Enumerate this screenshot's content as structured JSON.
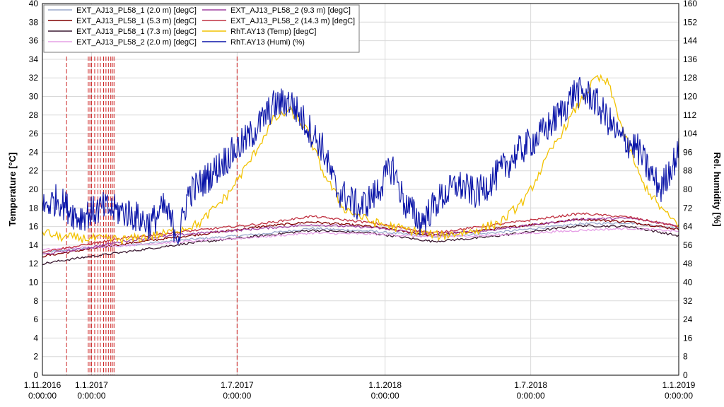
{
  "chart_data": {
    "type": "line",
    "ylabel_left": "Temperature [°C]",
    "ylabel_right": "Rel. humidity [%]",
    "y_left": {
      "min": 0,
      "max": 40,
      "step": 2
    },
    "y_right": {
      "min": 0,
      "max": 160,
      "step": 8
    },
    "x_range": [
      "2016-11-01",
      "2019-01-01"
    ],
    "x_ticks": [
      {
        "date": "2016-11-01",
        "line1": "1.11.2016",
        "line2": "0:00:00"
      },
      {
        "date": "2017-01-01",
        "line1": "1.1.2017",
        "line2": "0:00:00"
      },
      {
        "date": "2017-07-01",
        "line1": "1.7.2017",
        "line2": "0:00:00"
      },
      {
        "date": "2018-01-01",
        "line1": "1.1.2018",
        "line2": "0:00:00"
      },
      {
        "date": "2018-07-01",
        "line1": "1.7.2018",
        "line2": "0:00:00"
      },
      {
        "date": "2019-01-01",
        "line1": "1.1.2019",
        "line2": "0:00:00"
      }
    ],
    "grid": true,
    "legend_position": "top-left",
    "event_markers": [
      "2016-12-01",
      "2016-12-28",
      "2016-12-30",
      "2017-01-01",
      "2017-01-05",
      "2017-01-09",
      "2017-01-12",
      "2017-01-16",
      "2017-01-19",
      "2017-01-22",
      "2017-01-25",
      "2017-01-27",
      "2017-01-29",
      "2017-07-01"
    ],
    "marker_color": "#cc2222",
    "series": [
      {
        "name": "EXT_AJ13_PL58_1 (2.0 m) [degC]",
        "color": "#9aa8cc",
        "axis": "left",
        "points": [
          [
            "2016-11-01",
            13.2
          ],
          [
            "2016-12-15",
            13.6
          ],
          [
            "2017-02-15",
            14.0
          ],
          [
            "2017-05-01",
            14.6
          ],
          [
            "2017-08-01",
            15.2
          ],
          [
            "2017-10-01",
            15.8
          ],
          [
            "2017-12-15",
            15.5
          ],
          [
            "2018-03-01",
            14.9
          ],
          [
            "2018-05-01",
            15.2
          ],
          [
            "2018-09-01",
            16.3
          ],
          [
            "2018-11-01",
            16.4
          ],
          [
            "2019-01-01",
            15.8
          ]
        ]
      },
      {
        "name": "EXT_AJ13_PL58_1 (5.3 m) [degC]",
        "color": "#800000",
        "axis": "left",
        "points": [
          [
            "2016-11-01",
            12.8
          ],
          [
            "2016-12-15",
            13.4
          ],
          [
            "2017-02-15",
            14.2
          ],
          [
            "2017-05-01",
            15.0
          ],
          [
            "2017-08-01",
            16.0
          ],
          [
            "2017-10-01",
            16.5
          ],
          [
            "2017-12-15",
            16.0
          ],
          [
            "2018-03-01",
            15.0
          ],
          [
            "2018-05-01",
            15.6
          ],
          [
            "2018-09-01",
            16.8
          ],
          [
            "2018-11-01",
            16.5
          ],
          [
            "2019-01-01",
            15.7
          ]
        ]
      },
      {
        "name": "EXT_AJ13_PL58_1 (7.3 m) [degC]",
        "color": "#3a1830",
        "axis": "left",
        "points": [
          [
            "2016-11-01",
            12.0
          ],
          [
            "2016-12-15",
            12.6
          ],
          [
            "2017-02-15",
            13.3
          ],
          [
            "2017-05-01",
            14.2
          ],
          [
            "2017-08-01",
            15.0
          ],
          [
            "2017-10-01",
            15.6
          ],
          [
            "2017-12-15",
            15.3
          ],
          [
            "2018-03-01",
            14.4
          ],
          [
            "2018-05-01",
            14.8
          ],
          [
            "2018-09-01",
            16.1
          ],
          [
            "2018-11-01",
            16.0
          ],
          [
            "2019-01-01",
            15.0
          ]
        ]
      },
      {
        "name": "EXT_AJ13_PL58_2 (2.0 m) [degC]",
        "color": "#e6a0e6",
        "axis": "left",
        "points": [
          [
            "2016-11-01",
            13.5
          ],
          [
            "2016-12-15",
            13.7
          ],
          [
            "2017-02-15",
            14.0
          ],
          [
            "2017-05-01",
            14.4
          ],
          [
            "2017-08-01",
            14.9
          ],
          [
            "2017-10-01",
            15.3
          ],
          [
            "2017-12-15",
            15.2
          ],
          [
            "2018-03-01",
            14.9
          ],
          [
            "2018-05-01",
            15.0
          ],
          [
            "2018-09-01",
            15.6
          ],
          [
            "2018-11-01",
            15.8
          ],
          [
            "2019-01-01",
            15.5
          ]
        ]
      },
      {
        "name": "EXT_AJ13_PL58_2 (9.3 m) [degC]",
        "color": "#a040a0",
        "axis": "left",
        "points": [
          [
            "2016-11-01",
            13.0
          ],
          [
            "2016-12-15",
            13.5
          ],
          [
            "2017-02-15",
            14.5
          ],
          [
            "2017-05-01",
            15.2
          ],
          [
            "2017-08-01",
            15.8
          ],
          [
            "2017-10-01",
            16.2
          ],
          [
            "2017-12-15",
            15.9
          ],
          [
            "2018-03-01",
            15.2
          ],
          [
            "2018-05-01",
            15.5
          ],
          [
            "2018-09-01",
            16.8
          ],
          [
            "2018-11-01",
            16.9
          ],
          [
            "2019-01-01",
            16.1
          ]
        ]
      },
      {
        "name": "EXT_AJ13_PL58_2 (14.3 m) [degC]",
        "color": "#c03040",
        "axis": "left",
        "points": [
          [
            "2016-11-01",
            13.3
          ],
          [
            "2016-12-15",
            13.9
          ],
          [
            "2017-02-15",
            14.8
          ],
          [
            "2017-05-01",
            15.5
          ],
          [
            "2017-08-01",
            16.3
          ],
          [
            "2017-10-01",
            17.1
          ],
          [
            "2017-12-15",
            16.4
          ],
          [
            "2018-03-01",
            15.3
          ],
          [
            "2018-05-01",
            16.0
          ],
          [
            "2018-09-01",
            17.4
          ],
          [
            "2018-11-01",
            17.0
          ],
          [
            "2019-01-01",
            16.0
          ]
        ]
      },
      {
        "name": "RhT.AY13 (Temp) [degC]",
        "color": "#f2c200",
        "axis": "left",
        "points": [
          [
            "2016-11-01",
            15.5
          ],
          [
            "2016-11-20",
            14.9
          ],
          [
            "2017-01-01",
            14.7
          ],
          [
            "2017-02-15",
            14.6
          ],
          [
            "2017-04-01",
            15.2
          ],
          [
            "2017-05-15",
            16.3
          ],
          [
            "2017-06-20",
            19.5
          ],
          [
            "2017-07-20",
            23.5
          ],
          [
            "2017-08-15",
            27.5
          ],
          [
            "2017-09-05",
            28.5
          ],
          [
            "2017-09-25",
            26.5
          ],
          [
            "2017-10-15",
            22.0
          ],
          [
            "2017-11-10",
            18.0
          ],
          [
            "2017-12-15",
            16.5
          ],
          [
            "2018-01-20",
            15.8
          ],
          [
            "2018-03-10",
            15.0
          ],
          [
            "2018-04-20",
            15.5
          ],
          [
            "2018-05-25",
            16.5
          ],
          [
            "2018-06-25",
            19.0
          ],
          [
            "2018-07-25",
            24.0
          ],
          [
            "2018-08-25",
            28.5
          ],
          [
            "2018-09-20",
            32.0
          ],
          [
            "2018-10-05",
            31.5
          ],
          [
            "2018-10-25",
            26.0
          ],
          [
            "2018-11-15",
            21.0
          ],
          [
            "2018-12-05",
            18.5
          ],
          [
            "2018-12-20",
            17.0
          ],
          [
            "2019-01-01",
            16.3
          ]
        ]
      },
      {
        "name": "RhT.AY13 (Humi) (%)",
        "color": "#0a14a8",
        "axis": "right",
        "points": [
          [
            "2016-11-01",
            72
          ],
          [
            "2016-11-20",
            76
          ],
          [
            "2016-12-15",
            68
          ],
          [
            "2017-01-15",
            72
          ],
          [
            "2017-02-15",
            70
          ],
          [
            "2017-03-15",
            65
          ],
          [
            "2017-04-01",
            72
          ],
          [
            "2017-04-20",
            60
          ],
          [
            "2017-05-01",
            78
          ],
          [
            "2017-05-25",
            85
          ],
          [
            "2017-06-20",
            94
          ],
          [
            "2017-07-20",
            104
          ],
          [
            "2017-08-15",
            116
          ],
          [
            "2017-09-05",
            118
          ],
          [
            "2017-09-25",
            108
          ],
          [
            "2017-10-15",
            98
          ],
          [
            "2017-11-01",
            80
          ],
          [
            "2017-12-01",
            72
          ],
          [
            "2017-12-20",
            78
          ],
          [
            "2018-01-10",
            90
          ],
          [
            "2018-01-25",
            74
          ],
          [
            "2018-02-15",
            66
          ],
          [
            "2018-03-10",
            76
          ],
          [
            "2018-04-01",
            82
          ],
          [
            "2018-04-25",
            78
          ],
          [
            "2018-05-20",
            86
          ],
          [
            "2018-06-15",
            96
          ],
          [
            "2018-07-15",
            104
          ],
          [
            "2018-08-10",
            114
          ],
          [
            "2018-08-25",
            122
          ],
          [
            "2018-09-15",
            120
          ],
          [
            "2018-10-05",
            110
          ],
          [
            "2018-10-20",
            102
          ],
          [
            "2018-11-10",
            98
          ],
          [
            "2018-11-25",
            88
          ],
          [
            "2018-12-10",
            80
          ],
          [
            "2018-12-20",
            88
          ],
          [
            "2019-01-01",
            96
          ]
        ]
      }
    ]
  }
}
